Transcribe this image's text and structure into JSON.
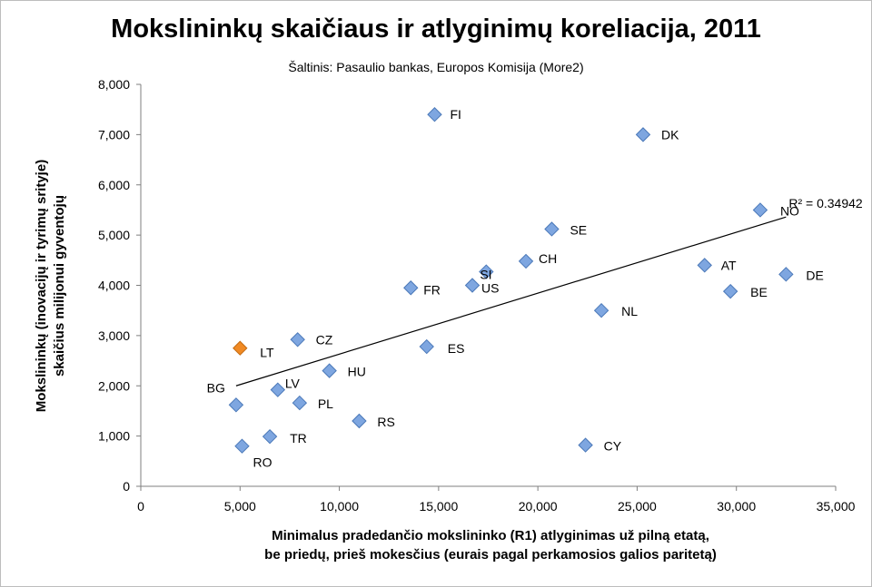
{
  "chart_data": {
    "type": "scatter",
    "title": "Mokslininkų skaičiaus ir atlyginimų koreliacija, 2011",
    "subtitle": "Šaltinis: Pasaulio bankas, Europos Komisija (More2)",
    "xlabel_lines": [
      "Minimalus pradedančio mokslininko (R1) atlyginimas už pilną etatą,",
      "be priedų, prieš mokesčius (eurais pagal perkamosios galios paritetą)"
    ],
    "ylabel_lines": [
      "Mokslininkų (inovacijų ir tyrimų srityje)",
      "skaičius milijonui gyventojų"
    ],
    "xlim": [
      0,
      35000
    ],
    "ylim": [
      0,
      8000
    ],
    "x_ticks": [
      "0",
      "5,000",
      "10,000",
      "15,000",
      "20,000",
      "25,000",
      "30,000",
      "35,000"
    ],
    "y_ticks": [
      "0",
      "1,000",
      "2,000",
      "3,000",
      "4,000",
      "5,000",
      "6,000",
      "7,000",
      "8,000"
    ],
    "grid": false,
    "colors": {
      "default": "#7ea6e0",
      "default_edge": "#4a78b8",
      "highlight": "#f08a24",
      "highlight_edge": "#c46a10"
    },
    "points": [
      {
        "label": "FI",
        "x": 14800,
        "y": 7400
      },
      {
        "label": "DK",
        "x": 25300,
        "y": 7000
      },
      {
        "label": "NO",
        "x": 31200,
        "y": 5500
      },
      {
        "label": "SE",
        "x": 20700,
        "y": 5120
      },
      {
        "label": "CH",
        "x": 19400,
        "y": 4480
      },
      {
        "label": "SI",
        "x": 17400,
        "y": 4270
      },
      {
        "label": "US",
        "x": 16700,
        "y": 4000
      },
      {
        "label": "FR",
        "x": 13600,
        "y": 3950
      },
      {
        "label": "AT",
        "x": 28400,
        "y": 4400
      },
      {
        "label": "DE",
        "x": 32500,
        "y": 4220
      },
      {
        "label": "BE",
        "x": 29700,
        "y": 3880
      },
      {
        "label": "NL",
        "x": 23200,
        "y": 3500
      },
      {
        "label": "CZ",
        "x": 7900,
        "y": 2920
      },
      {
        "label": "LT",
        "x": 5000,
        "y": 2750,
        "highlight": true
      },
      {
        "label": "ES",
        "x": 14400,
        "y": 2780
      },
      {
        "label": "HU",
        "x": 9500,
        "y": 2300
      },
      {
        "label": "LV",
        "x": 6900,
        "y": 1920
      },
      {
        "label": "PL",
        "x": 8000,
        "y": 1660
      },
      {
        "label": "BG",
        "x": 4800,
        "y": 1620
      },
      {
        "label": "RS",
        "x": 11000,
        "y": 1300
      },
      {
        "label": "TR",
        "x": 6500,
        "y": 990
      },
      {
        "label": "CY",
        "x": 22400,
        "y": 820
      },
      {
        "label": "RO",
        "x": 5100,
        "y": 800
      }
    ],
    "trendline": {
      "x_start": 4800,
      "y_start": 2000,
      "x_end": 32500,
      "y_end": 5360,
      "r2_label": "R² = 0.34942"
    }
  }
}
